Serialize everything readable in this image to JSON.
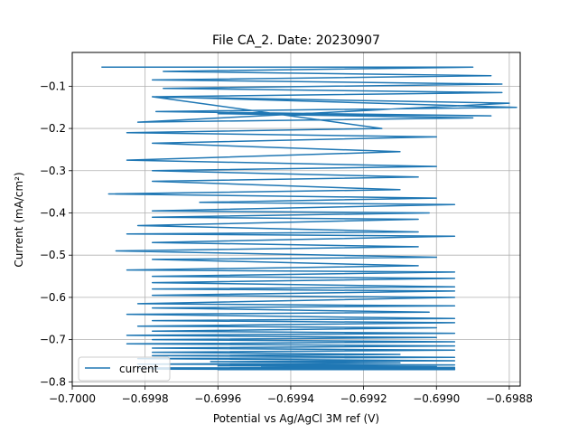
{
  "chart_data": {
    "type": "line",
    "title": "File CA_2. Date: 20230907",
    "xlabel": "Potential vs Ag/AgCl 3M ref (V)",
    "ylabel": "Current (mA/cm²)",
    "xlim": [
      -0.7,
      -0.69877
    ],
    "ylim": [
      -0.81,
      -0.02
    ],
    "x_ticks": [
      -0.7,
      -0.6998,
      -0.6996,
      -0.6994,
      -0.6992,
      -0.699,
      -0.6988
    ],
    "x_tick_labels": [
      "−0.7000",
      "−0.6998",
      "−0.6996",
      "−0.6994",
      "−0.6992",
      "−0.6990",
      "−0.6988"
    ],
    "y_ticks": [
      -0.1,
      -0.2,
      -0.3,
      -0.4,
      -0.5,
      -0.6,
      -0.7,
      -0.8
    ],
    "y_tick_labels": [
      "−0.1",
      "−0.2",
      "−0.3",
      "−0.4",
      "−0.5",
      "−0.6",
      "−0.7",
      "−0.8"
    ],
    "grid": true,
    "legend_position": "lower-left",
    "series": [
      {
        "name": "current",
        "color": "#1f77b4",
        "x": [
          -0.69992,
          -0.6989,
          -0.69975,
          -0.69885,
          -0.69978,
          -0.69882,
          -0.69975,
          -0.69882,
          -0.69977,
          -0.69878,
          -0.69977,
          -0.69885,
          -0.6996,
          -0.6989,
          -0.69982,
          -0.6988,
          -0.69978,
          -0.69915,
          -0.69985,
          -0.699,
          -0.69978,
          -0.6991,
          -0.69985,
          -0.699,
          -0.69978,
          -0.69905,
          -0.69978,
          -0.6991,
          -0.6999,
          -0.699,
          -0.69965,
          -0.69895,
          -0.69978,
          -0.69902,
          -0.69978,
          -0.69905,
          -0.69982,
          -0.69905,
          -0.69985,
          -0.69895,
          -0.69978,
          -0.69905,
          -0.69988,
          -0.699,
          -0.69978,
          -0.69905,
          -0.69985,
          -0.69895,
          -0.69978,
          -0.69895,
          -0.69978,
          -0.69895,
          -0.69978,
          -0.69895,
          -0.69978,
          -0.69895,
          -0.69982,
          -0.69895,
          -0.69978,
          -0.69902,
          -0.69985,
          -0.69895,
          -0.69978,
          -0.69895,
          -0.69982,
          -0.699,
          -0.69978,
          -0.69895,
          -0.69985,
          -0.699,
          -0.69978,
          -0.69895,
          -0.69985,
          -0.69895,
          -0.69978,
          -0.69895,
          -0.69978,
          -0.6991,
          -0.69978,
          -0.69895,
          -0.69982,
          -0.69895,
          -0.69962,
          -0.6991,
          -0.69982,
          -0.69895,
          -0.6996,
          -0.699,
          -0.69948,
          -0.69895,
          -0.69978,
          -0.69895,
          -0.69982,
          -0.69925,
          -0.6996,
          -0.69895,
          -0.69978,
          -0.69895,
          -0.69945,
          -0.69895,
          -0.6996,
          -0.6994,
          -0.69895
        ],
        "y": [
          -0.055,
          -0.055,
          -0.065,
          -0.075,
          -0.085,
          -0.095,
          -0.105,
          -0.115,
          -0.125,
          -0.15,
          -0.16,
          -0.17,
          -0.165,
          -0.175,
          -0.185,
          -0.14,
          -0.125,
          -0.2,
          -0.21,
          -0.22,
          -0.235,
          -0.255,
          -0.275,
          -0.29,
          -0.3,
          -0.315,
          -0.325,
          -0.345,
          -0.355,
          -0.365,
          -0.375,
          -0.38,
          -0.395,
          -0.4,
          -0.41,
          -0.415,
          -0.43,
          -0.445,
          -0.45,
          -0.455,
          -0.47,
          -0.48,
          -0.49,
          -0.505,
          -0.51,
          -0.525,
          -0.535,
          -0.54,
          -0.55,
          -0.555,
          -0.565,
          -0.575,
          -0.58,
          -0.585,
          -0.595,
          -0.6,
          -0.615,
          -0.62,
          -0.625,
          -0.635,
          -0.64,
          -0.65,
          -0.655,
          -0.66,
          -0.668,
          -0.672,
          -0.68,
          -0.685,
          -0.69,
          -0.695,
          -0.7,
          -0.705,
          -0.71,
          -0.715,
          -0.72,
          -0.725,
          -0.73,
          -0.735,
          -0.738,
          -0.742,
          -0.745,
          -0.75,
          -0.752,
          -0.755,
          -0.758,
          -0.76,
          -0.762,
          -0.764,
          -0.765,
          -0.766,
          -0.767,
          -0.768,
          -0.768,
          -0.769,
          -0.77,
          -0.77,
          -0.77,
          -0.771,
          -0.771,
          -0.771,
          -0.771,
          -0.77,
          -0.77
        ]
      }
    ]
  }
}
